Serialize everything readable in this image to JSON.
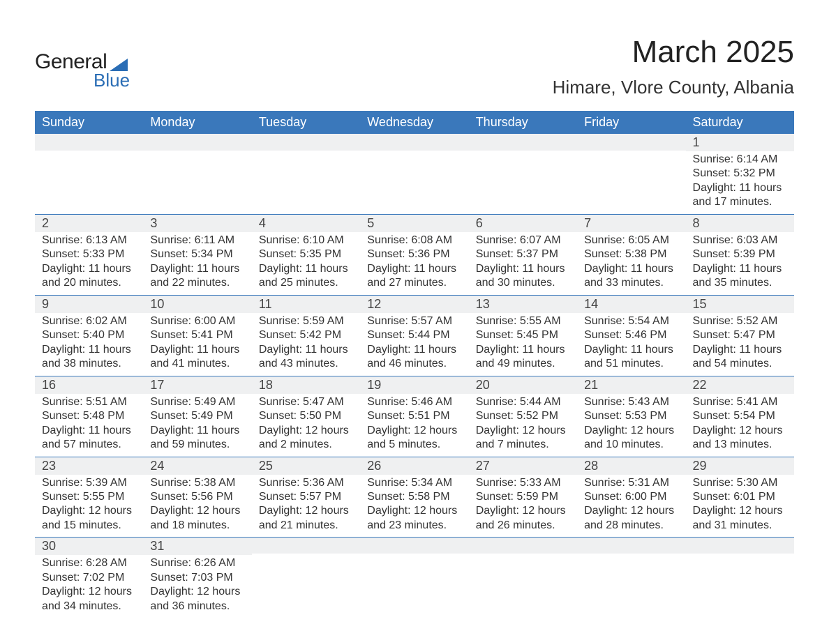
{
  "logo": {
    "general": "General",
    "blue": "Blue"
  },
  "header": {
    "month_title": "March 2025",
    "location": "Himare, Vlore County, Albania"
  },
  "calendar": {
    "day_headers": [
      "Sunday",
      "Monday",
      "Tuesday",
      "Wednesday",
      "Thursday",
      "Friday",
      "Saturday"
    ],
    "colors": {
      "header_bg": "#3a78bb",
      "header_text": "#ffffff",
      "bar_bg": "#eff0f1",
      "bar_border": "#3a78bb",
      "text": "#333333"
    },
    "weeks": [
      [
        null,
        null,
        null,
        null,
        null,
        null,
        {
          "num": "1",
          "sunrise": "Sunrise: 6:14 AM",
          "sunset": "Sunset: 5:32 PM",
          "daylight": "Daylight: 11 hours and 17 minutes."
        }
      ],
      [
        {
          "num": "2",
          "sunrise": "Sunrise: 6:13 AM",
          "sunset": "Sunset: 5:33 PM",
          "daylight": "Daylight: 11 hours and 20 minutes."
        },
        {
          "num": "3",
          "sunrise": "Sunrise: 6:11 AM",
          "sunset": "Sunset: 5:34 PM",
          "daylight": "Daylight: 11 hours and 22 minutes."
        },
        {
          "num": "4",
          "sunrise": "Sunrise: 6:10 AM",
          "sunset": "Sunset: 5:35 PM",
          "daylight": "Daylight: 11 hours and 25 minutes."
        },
        {
          "num": "5",
          "sunrise": "Sunrise: 6:08 AM",
          "sunset": "Sunset: 5:36 PM",
          "daylight": "Daylight: 11 hours and 27 minutes."
        },
        {
          "num": "6",
          "sunrise": "Sunrise: 6:07 AM",
          "sunset": "Sunset: 5:37 PM",
          "daylight": "Daylight: 11 hours and 30 minutes."
        },
        {
          "num": "7",
          "sunrise": "Sunrise: 6:05 AM",
          "sunset": "Sunset: 5:38 PM",
          "daylight": "Daylight: 11 hours and 33 minutes."
        },
        {
          "num": "8",
          "sunrise": "Sunrise: 6:03 AM",
          "sunset": "Sunset: 5:39 PM",
          "daylight": "Daylight: 11 hours and 35 minutes."
        }
      ],
      [
        {
          "num": "9",
          "sunrise": "Sunrise: 6:02 AM",
          "sunset": "Sunset: 5:40 PM",
          "daylight": "Daylight: 11 hours and 38 minutes."
        },
        {
          "num": "10",
          "sunrise": "Sunrise: 6:00 AM",
          "sunset": "Sunset: 5:41 PM",
          "daylight": "Daylight: 11 hours and 41 minutes."
        },
        {
          "num": "11",
          "sunrise": "Sunrise: 5:59 AM",
          "sunset": "Sunset: 5:42 PM",
          "daylight": "Daylight: 11 hours and 43 minutes."
        },
        {
          "num": "12",
          "sunrise": "Sunrise: 5:57 AM",
          "sunset": "Sunset: 5:44 PM",
          "daylight": "Daylight: 11 hours and 46 minutes."
        },
        {
          "num": "13",
          "sunrise": "Sunrise: 5:55 AM",
          "sunset": "Sunset: 5:45 PM",
          "daylight": "Daylight: 11 hours and 49 minutes."
        },
        {
          "num": "14",
          "sunrise": "Sunrise: 5:54 AM",
          "sunset": "Sunset: 5:46 PM",
          "daylight": "Daylight: 11 hours and 51 minutes."
        },
        {
          "num": "15",
          "sunrise": "Sunrise: 5:52 AM",
          "sunset": "Sunset: 5:47 PM",
          "daylight": "Daylight: 11 hours and 54 minutes."
        }
      ],
      [
        {
          "num": "16",
          "sunrise": "Sunrise: 5:51 AM",
          "sunset": "Sunset: 5:48 PM",
          "daylight": "Daylight: 11 hours and 57 minutes."
        },
        {
          "num": "17",
          "sunrise": "Sunrise: 5:49 AM",
          "sunset": "Sunset: 5:49 PM",
          "daylight": "Daylight: 11 hours and 59 minutes."
        },
        {
          "num": "18",
          "sunrise": "Sunrise: 5:47 AM",
          "sunset": "Sunset: 5:50 PM",
          "daylight": "Daylight: 12 hours and 2 minutes."
        },
        {
          "num": "19",
          "sunrise": "Sunrise: 5:46 AM",
          "sunset": "Sunset: 5:51 PM",
          "daylight": "Daylight: 12 hours and 5 minutes."
        },
        {
          "num": "20",
          "sunrise": "Sunrise: 5:44 AM",
          "sunset": "Sunset: 5:52 PM",
          "daylight": "Daylight: 12 hours and 7 minutes."
        },
        {
          "num": "21",
          "sunrise": "Sunrise: 5:43 AM",
          "sunset": "Sunset: 5:53 PM",
          "daylight": "Daylight: 12 hours and 10 minutes."
        },
        {
          "num": "22",
          "sunrise": "Sunrise: 5:41 AM",
          "sunset": "Sunset: 5:54 PM",
          "daylight": "Daylight: 12 hours and 13 minutes."
        }
      ],
      [
        {
          "num": "23",
          "sunrise": "Sunrise: 5:39 AM",
          "sunset": "Sunset: 5:55 PM",
          "daylight": "Daylight: 12 hours and 15 minutes."
        },
        {
          "num": "24",
          "sunrise": "Sunrise: 5:38 AM",
          "sunset": "Sunset: 5:56 PM",
          "daylight": "Daylight: 12 hours and 18 minutes."
        },
        {
          "num": "25",
          "sunrise": "Sunrise: 5:36 AM",
          "sunset": "Sunset: 5:57 PM",
          "daylight": "Daylight: 12 hours and 21 minutes."
        },
        {
          "num": "26",
          "sunrise": "Sunrise: 5:34 AM",
          "sunset": "Sunset: 5:58 PM",
          "daylight": "Daylight: 12 hours and 23 minutes."
        },
        {
          "num": "27",
          "sunrise": "Sunrise: 5:33 AM",
          "sunset": "Sunset: 5:59 PM",
          "daylight": "Daylight: 12 hours and 26 minutes."
        },
        {
          "num": "28",
          "sunrise": "Sunrise: 5:31 AM",
          "sunset": "Sunset: 6:00 PM",
          "daylight": "Daylight: 12 hours and 28 minutes."
        },
        {
          "num": "29",
          "sunrise": "Sunrise: 5:30 AM",
          "sunset": "Sunset: 6:01 PM",
          "daylight": "Daylight: 12 hours and 31 minutes."
        }
      ],
      [
        {
          "num": "30",
          "sunrise": "Sunrise: 6:28 AM",
          "sunset": "Sunset: 7:02 PM",
          "daylight": "Daylight: 12 hours and 34 minutes."
        },
        {
          "num": "31",
          "sunrise": "Sunrise: 6:26 AM",
          "sunset": "Sunset: 7:03 PM",
          "daylight": "Daylight: 12 hours and 36 minutes."
        },
        null,
        null,
        null,
        null,
        null
      ]
    ]
  }
}
